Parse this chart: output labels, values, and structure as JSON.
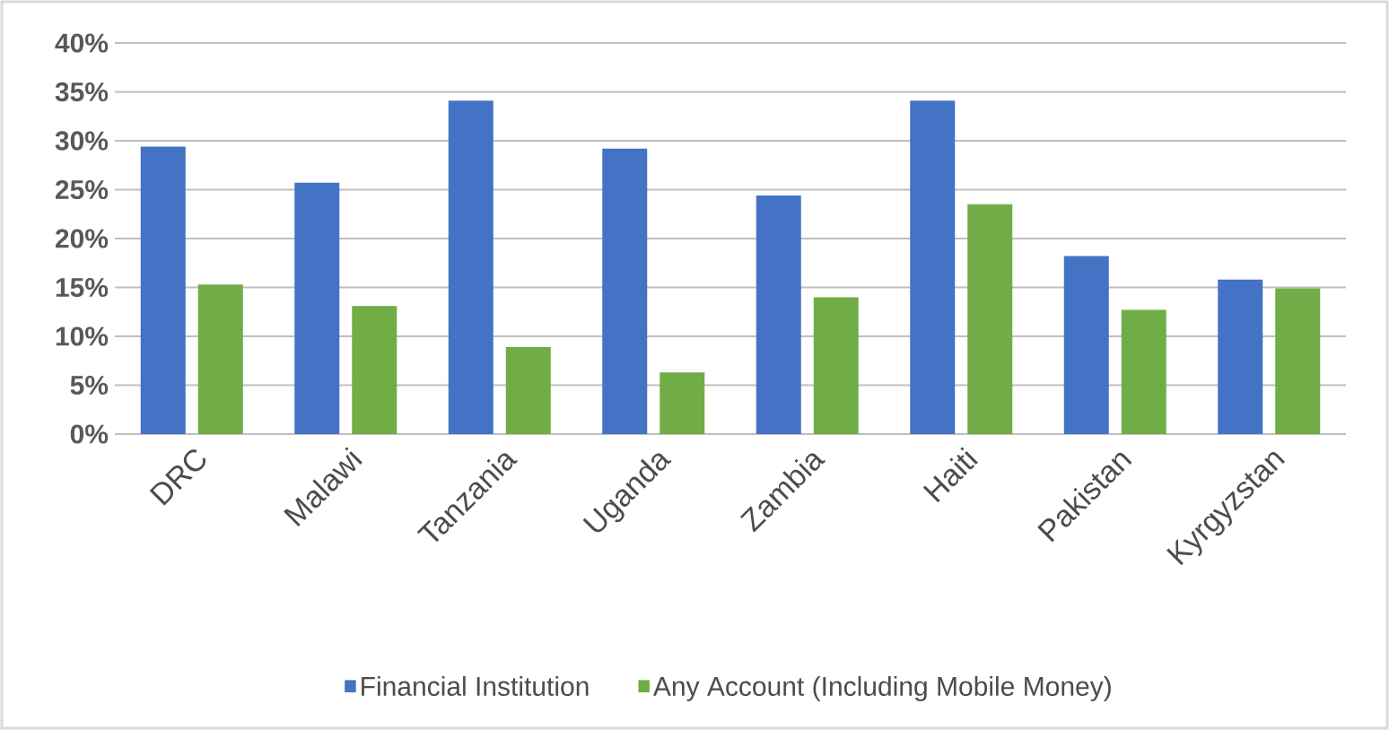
{
  "chart_data": {
    "type": "bar",
    "categories": [
      "DRC",
      "Malawi",
      "Tanzania",
      "Uganda",
      "Zambia",
      "Haiti",
      "Pakistan",
      "Kyrgyzstan"
    ],
    "series": [
      {
        "name": "Financial Institution",
        "color": "#4472c4",
        "values": [
          29.4,
          25.7,
          34.1,
          29.2,
          24.4,
          34.1,
          18.2,
          15.8
        ]
      },
      {
        "name": "Any Account (Including Mobile Money)",
        "color": "#70ad47",
        "values": [
          15.3,
          13.1,
          8.9,
          6.3,
          14.0,
          23.5,
          12.7,
          14.9
        ]
      }
    ],
    "ylim": [
      0,
      40
    ],
    "yticks": [
      {
        "value": 0,
        "label": "0%"
      },
      {
        "value": 5,
        "label": "5%"
      },
      {
        "value": 10,
        "label": "10%"
      },
      {
        "value": 15,
        "label": "15%"
      },
      {
        "value": 20,
        "label": "20%"
      },
      {
        "value": 25,
        "label": "25%"
      },
      {
        "value": 30,
        "label": "30%"
      },
      {
        "value": 35,
        "label": "35%"
      },
      {
        "value": 40,
        "label": "40%"
      }
    ],
    "grid": "y",
    "legend": "bottom"
  }
}
